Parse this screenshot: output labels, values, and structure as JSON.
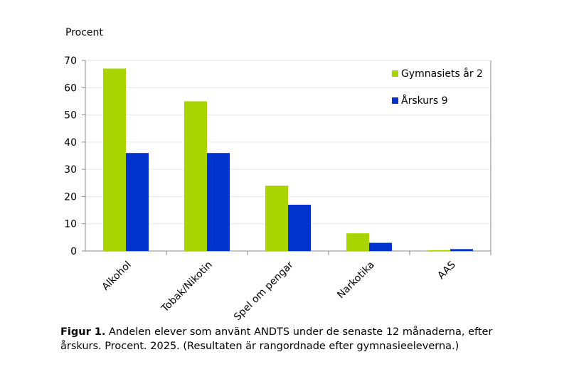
{
  "chart_data": {
    "type": "bar",
    "ylabel": "Procent",
    "ylim": [
      0,
      70
    ],
    "yticks": [
      0,
      10,
      20,
      30,
      40,
      50,
      60,
      70
    ],
    "grid": true,
    "legend_position": "top-right",
    "categories": [
      "Alkohol",
      "Tobak/Nikotin",
      "Spel om pengar",
      "Narkotika",
      "AAS"
    ],
    "series": [
      {
        "name": "Gymnasiets år 2",
        "color": "#aad400",
        "values": [
          67,
          55,
          24,
          6.5,
          0.3
        ]
      },
      {
        "name": "Årskurs 9",
        "color": "#0033cc",
        "values": [
          36,
          36,
          17,
          3,
          0.7
        ]
      }
    ]
  },
  "caption": {
    "label": "Figur 1.",
    "text": " Andelen elever som använt ANDTS under de senaste 12 månaderna, efter årskurs. Procent. 2025. (Resultaten är rangordnade efter gymnasieeleverna.)"
  }
}
